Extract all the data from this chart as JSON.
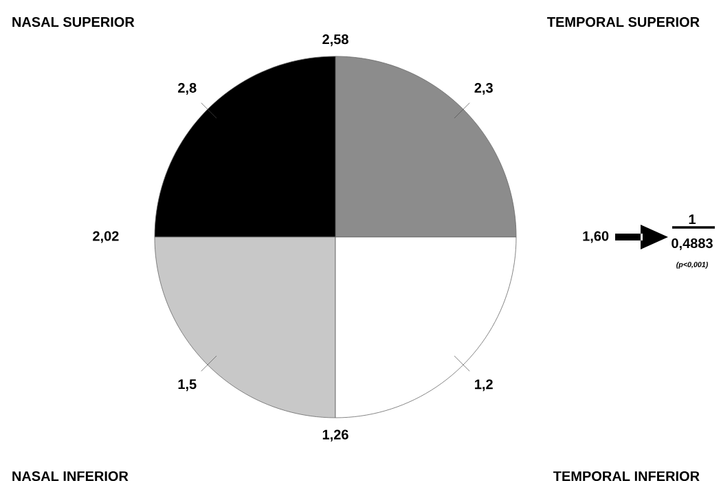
{
  "chart_data": {
    "type": "pie",
    "categories": [
      "TEMPORAL SUPERIOR",
      "NASAL SUPERIOR",
      "NASAL INFERIOR",
      "TEMPORAL INFERIOR"
    ],
    "values": [
      25,
      25,
      25,
      25
    ],
    "colors": [
      "#8c8c8c",
      "#000000",
      "#c8c8c8",
      "#ffffff"
    ],
    "annotations": [
      "2,3",
      "2,8",
      "1,5",
      "1,2",
      "2,58",
      "2,02",
      "1,26",
      "1,60",
      "1",
      "0,4883",
      "(p<0,001)"
    ]
  }
}
